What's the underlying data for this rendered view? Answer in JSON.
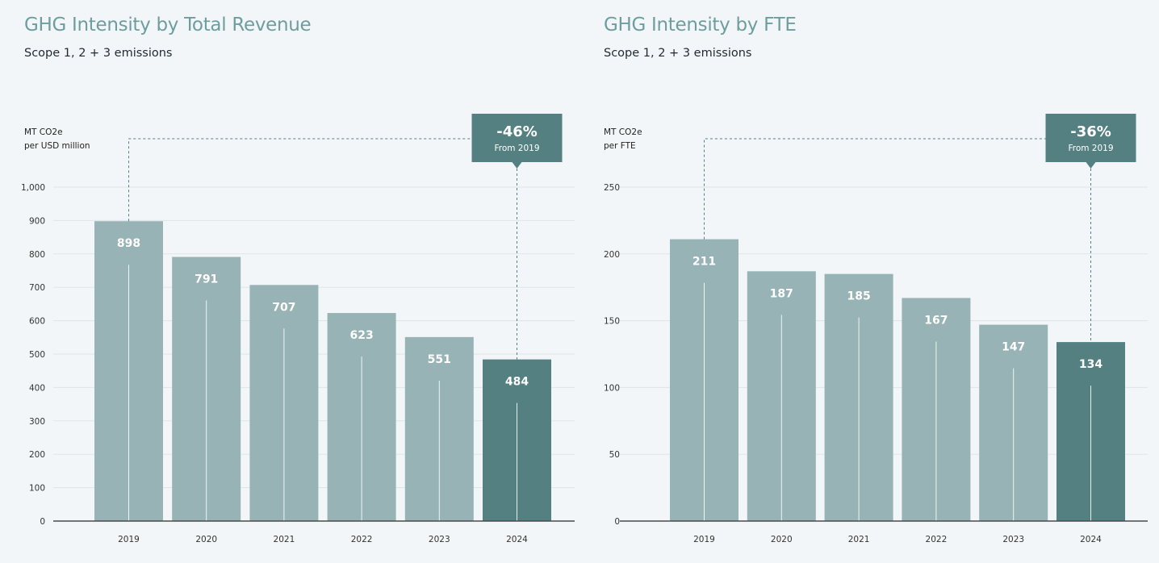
{
  "chart_data": [
    {
      "type": "bar",
      "title": "GHG Intensity by Total Revenue",
      "subtitle": "Scope 1, 2 + 3 emissions",
      "ylabel": [
        "MT CO2e",
        "per USD million"
      ],
      "categories": [
        "2019",
        "2020",
        "2021",
        "2022",
        "2023",
        "2024"
      ],
      "values": [
        898,
        791,
        707,
        623,
        551,
        484
      ],
      "value_labels": [
        "898",
        "791",
        "707",
        "623",
        "551",
        "484"
      ],
      "ylim": [
        0,
        1000
      ],
      "yticks": [
        0,
        100,
        200,
        300,
        400,
        500,
        600,
        700,
        800,
        900,
        1000
      ],
      "ytick_labels": [
        "0",
        "100",
        "200",
        "300",
        "400",
        "500",
        "600",
        "700",
        "800",
        "900",
        "1,000"
      ],
      "grid": true,
      "highlight_category": "2024",
      "callout": {
        "value": "-46%",
        "label": "From 2019",
        "from": "2019",
        "to": "2024"
      },
      "colors": {
        "bar": "#97b3b5",
        "highlight": "#558082",
        "grid": "#dde5e8",
        "axis": "#4a4a4a",
        "title": "#6e9da0"
      }
    },
    {
      "type": "bar",
      "title": "GHG Intensity by FTE",
      "subtitle": "Scope 1, 2 + 3 emissions",
      "ylabel": [
        "MT CO2e",
        "per FTE"
      ],
      "categories": [
        "2019",
        "2020",
        "2021",
        "2022",
        "2023",
        "2024"
      ],
      "values": [
        211,
        187,
        185,
        167,
        147,
        134
      ],
      "value_labels": [
        "211",
        "187",
        "185",
        "167",
        "147",
        "134"
      ],
      "ylim": [
        0,
        250
      ],
      "yticks": [
        0,
        50,
        100,
        150,
        200,
        250
      ],
      "ytick_labels": [
        "0",
        "50",
        "100",
        "150",
        "200",
        "250"
      ],
      "grid": true,
      "highlight_category": "2024",
      "callout": {
        "value": "-36%",
        "label": "From 2019",
        "from": "2019",
        "to": "2024"
      },
      "colors": {
        "bar": "#97b3b5",
        "highlight": "#558082",
        "grid": "#dde5e8",
        "axis": "#4a4a4a",
        "title": "#6e9da0"
      }
    }
  ]
}
